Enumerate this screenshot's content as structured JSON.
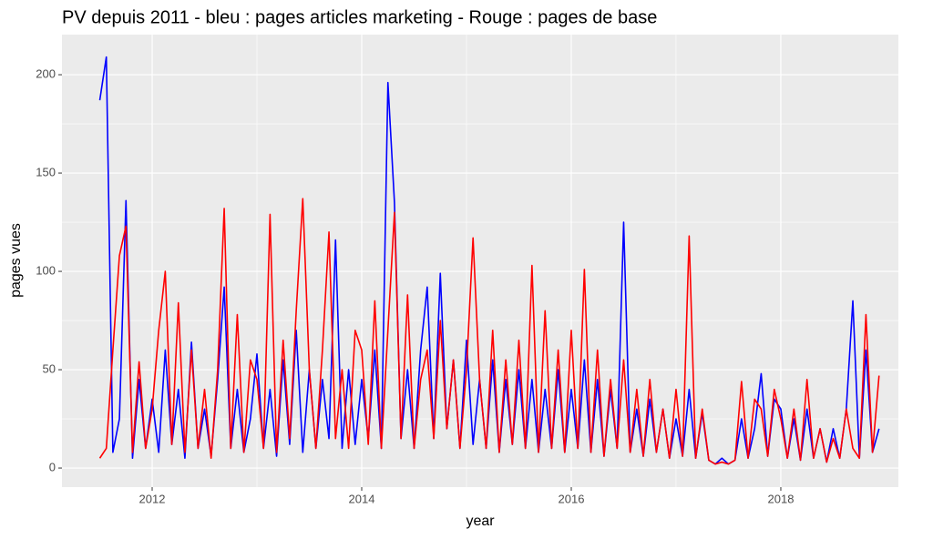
{
  "chart_data": {
    "type": "line",
    "title": "PV depuis 2011 - bleu : pages articles marketing - Rouge : pages de base",
    "x_label": "year",
    "y_label": "pages vues",
    "xlim": [
      2011.139,
      2019.122
    ],
    "ylim": [
      -9.7,
      220.4
    ],
    "xticks": [
      2012,
      2014,
      2016,
      2018
    ],
    "yticks": [
      0,
      50,
      100,
      150,
      200
    ],
    "grid": true,
    "x": [
      2011.5,
      2011.5625,
      2011.625,
      2011.6875,
      2011.75,
      2011.8125,
      2011.875,
      2011.9375,
      2012,
      2012.0625,
      2012.125,
      2012.1875,
      2012.25,
      2012.3125,
      2012.375,
      2012.4375,
      2012.5,
      2012.5625,
      2012.625,
      2012.6875,
      2012.75,
      2012.8125,
      2012.875,
      2012.9375,
      2013,
      2013.0625,
      2013.125,
      2013.1875,
      2013.25,
      2013.3125,
      2013.375,
      2013.4375,
      2013.5,
      2013.5625,
      2013.625,
      2013.6875,
      2013.75,
      2013.8125,
      2013.875,
      2013.9375,
      2014,
      2014.0625,
      2014.125,
      2014.1875,
      2014.25,
      2014.3125,
      2014.375,
      2014.4375,
      2014.5,
      2014.5625,
      2014.625,
      2014.6875,
      2014.75,
      2014.8125,
      2014.875,
      2014.9375,
      2015,
      2015.0625,
      2015.125,
      2015.1875,
      2015.25,
      2015.3125,
      2015.375,
      2015.4375,
      2015.5,
      2015.5625,
      2015.625,
      2015.6875,
      2015.75,
      2015.8125,
      2015.875,
      2015.9375,
      2016,
      2016.0625,
      2016.125,
      2016.1875,
      2016.25,
      2016.3125,
      2016.375,
      2016.4375,
      2016.5,
      2016.5625,
      2016.625,
      2016.6875,
      2016.75,
      2016.8125,
      2016.875,
      2016.9375,
      2017,
      2017.0625,
      2017.125,
      2017.1875,
      2017.25,
      2017.3125,
      2017.375,
      2017.4375,
      2017.5,
      2017.5625,
      2017.625,
      2017.6875,
      2017.75,
      2017.8125,
      2017.875,
      2017.9375,
      2018,
      2018.0625,
      2018.125,
      2018.1875,
      2018.25,
      2018.3125,
      2018.375,
      2018.4375,
      2018.5,
      2018.5625,
      2018.625,
      2018.6875,
      2018.75,
      2018.8125,
      2018.875,
      2018.9375
    ],
    "series": [
      {
        "color": "#0000ff",
        "values": [
          187,
          209,
          8,
          25,
          136,
          5,
          45,
          10,
          35,
          8,
          60,
          12,
          40,
          5,
          64,
          10,
          30,
          6,
          45,
          92,
          10,
          40,
          8,
          25,
          58,
          10,
          40,
          6,
          55,
          12,
          70,
          8,
          50,
          10,
          45,
          15,
          116,
          10,
          50,
          12,
          45,
          15,
          60,
          10,
          196,
          135,
          15,
          50,
          10,
          60,
          92,
          15,
          99,
          20,
          55,
          10,
          65,
          12,
          45,
          10,
          55,
          8,
          45,
          12,
          50,
          10,
          45,
          8,
          40,
          10,
          50,
          8,
          40,
          10,
          55,
          8,
          45,
          6,
          40,
          10,
          125,
          8,
          30,
          6,
          35,
          8,
          30,
          5,
          25,
          6,
          40,
          5,
          28,
          4,
          2,
          5,
          2,
          4,
          25,
          5,
          20,
          48,
          6,
          35,
          30,
          5,
          25,
          4,
          30,
          5,
          20,
          3,
          20,
          5,
          30,
          85,
          5,
          60,
          8,
          20
        ]
      },
      {
        "color": "#ff0000",
        "values": [
          5,
          10,
          60,
          108,
          123,
          8,
          54,
          10,
          30,
          70,
          100,
          12,
          84,
          8,
          60,
          10,
          40,
          5,
          50,
          132,
          10,
          78,
          8,
          55,
          45,
          10,
          129,
          8,
          65,
          15,
          80,
          137,
          50,
          10,
          60,
          120,
          15,
          50,
          10,
          70,
          60,
          12,
          85,
          10,
          70,
          130,
          15,
          88,
          10,
          45,
          60,
          15,
          75,
          20,
          55,
          10,
          50,
          117,
          45,
          10,
          70,
          8,
          55,
          12,
          65,
          10,
          103,
          8,
          80,
          10,
          60,
          8,
          70,
          10,
          101,
          8,
          60,
          6,
          45,
          10,
          55,
          8,
          40,
          6,
          45,
          8,
          30,
          5,
          40,
          6,
          118,
          5,
          30,
          4,
          2,
          3,
          2,
          4,
          44,
          5,
          35,
          30,
          6,
          40,
          25,
          5,
          30,
          4,
          45,
          5,
          20,
          3,
          15,
          5,
          30,
          10,
          5,
          78,
          8,
          47
        ]
      }
    ]
  }
}
